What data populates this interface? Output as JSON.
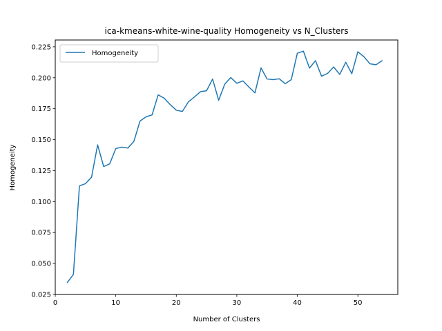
{
  "chart_data": {
    "type": "line",
    "title": "ica-kmeans-white-wine-quality Homogeneity vs N_Clusters",
    "xlabel": "Number of Clusters",
    "ylabel": "Homogeneity",
    "xlim": [
      0,
      56.6
    ],
    "ylim": [
      0.025,
      0.2305
    ],
    "xticks": [
      0,
      10,
      20,
      30,
      40,
      50
    ],
    "yticks": [
      0.025,
      0.05,
      0.075,
      0.1,
      0.125,
      0.15,
      0.175,
      0.2,
      0.225
    ],
    "xtick_labels": [
      "0",
      "10",
      "20",
      "30",
      "40",
      "50"
    ],
    "ytick_labels": [
      "0.025",
      "0.050",
      "0.075",
      "0.100",
      "0.125",
      "0.150",
      "0.175",
      "0.200",
      "0.225"
    ],
    "grid": false,
    "legend_position": "upper-left",
    "series": [
      {
        "name": "Homogeneity",
        "color": "#1f77b4",
        "x": [
          2,
          3,
          4,
          5,
          6,
          7,
          8,
          9,
          10,
          11,
          12,
          13,
          14,
          15,
          16,
          17,
          18,
          19,
          20,
          21,
          22,
          23,
          24,
          25,
          26,
          27,
          28,
          29,
          30,
          31,
          32,
          33,
          34,
          35,
          36,
          37,
          38,
          39,
          40,
          41,
          42,
          43,
          44,
          45,
          46,
          47,
          48,
          49,
          50,
          51,
          52,
          53,
          54
        ],
        "values": [
          0.0347,
          0.0412,
          0.1127,
          0.1145,
          0.1197,
          0.1458,
          0.1283,
          0.1305,
          0.1428,
          0.144,
          0.1432,
          0.1487,
          0.165,
          0.1685,
          0.17,
          0.1862,
          0.1835,
          0.1783,
          0.1738,
          0.1728,
          0.1805,
          0.1845,
          0.1888,
          0.1895,
          0.199,
          0.1818,
          0.1948,
          0.2002,
          0.1955,
          0.1975,
          0.1925,
          0.1878,
          0.208,
          0.199,
          0.1985,
          0.1992,
          0.1952,
          0.1985,
          0.2198,
          0.2215,
          0.2078,
          0.2138,
          0.2013,
          0.2035,
          0.2087,
          0.2027,
          0.2125,
          0.2033,
          0.221,
          0.217,
          0.2113,
          0.2105,
          0.2138
        ]
      }
    ]
  }
}
